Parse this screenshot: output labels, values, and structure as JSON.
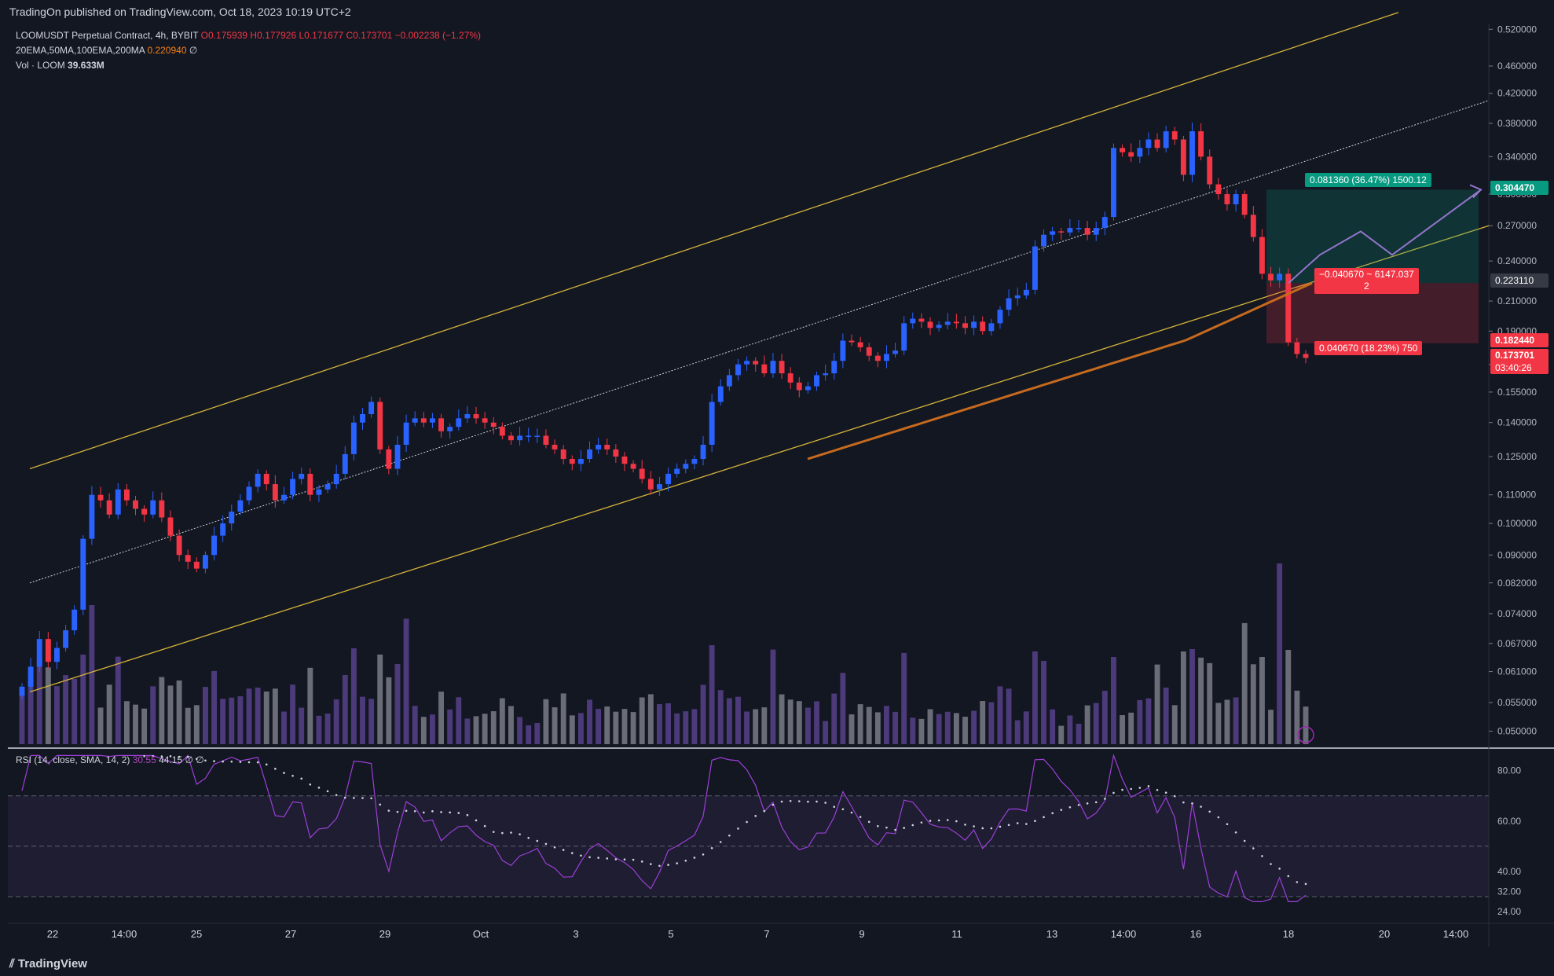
{
  "header": {
    "published": "TradingOn published on TradingView.com, Oct 18, 2023 10:19 UTC+2"
  },
  "footer": {
    "brand": "TradingView",
    "brand_icon": "tradingview-logo-icon"
  },
  "legend": {
    "symbol": "LOOMUSDT Perpetual Contract, 4h, BYBIT",
    "open": "O0.175939",
    "high": "H0.177926",
    "low": "L0.171677",
    "close": "C0.173701",
    "change": "−0.002238 (−1.27%)",
    "ema_label": "20EMA,50MA,100EMA,200MA",
    "ema_value": "0.220940",
    "ema_extra": "∅",
    "vol_label": "Vol · LOOM",
    "vol_value": "39.633M",
    "rsi_label": "RSI (14, close, SMA, 14, 2)",
    "rsi_value": "30.55",
    "rsi_ma": "44.15",
    "rsi_extra": "∅  ∅"
  },
  "price_tags": {
    "target": "0.304470",
    "ma200": "0.223110",
    "stop": "0.182440",
    "last": "0.173701",
    "countdown": "03:40:26"
  },
  "position": {
    "profit_label": "0.081360 (36.47%) 1500.12",
    "entry_label_1": "−0.040670 ~ 6147.037",
    "entry_label_2": "2",
    "loss_label": "0.040670 (18.23%) 750"
  },
  "colors": {
    "bull": "#2962ff",
    "bear": "#f23645",
    "channel": "#d4b43a",
    "ma": "#c66a1e",
    "rsi": "#9c3fd6",
    "profit": "#089981",
    "loss": "#f23645"
  },
  "chart_data": {
    "type": "candlestick",
    "symbol": "LOOMUSDT",
    "interval": "4h",
    "y_axis": {
      "scale": "log",
      "ticks": [
        0.52,
        0.46,
        0.42,
        0.38,
        0.34,
        0.3,
        0.27,
        0.24,
        0.21,
        0.19,
        0.17,
        0.155,
        0.14,
        0.125,
        0.11,
        0.1,
        0.09,
        0.082,
        0.074,
        0.067,
        0.061,
        0.055,
        0.05
      ],
      "tick_labels": [
        "0.520000",
        "0.460000",
        "0.420000",
        "0.380000",
        "0.340000",
        "0.300000",
        "0.270000",
        "0.240000",
        "0.210000",
        "0.190000",
        "0.170000",
        "0.155000",
        "0.140000",
        "0.125000",
        "0.110000",
        "0.100000",
        "0.090000",
        "0.082000",
        "0.074000",
        "0.067000",
        "0.061000",
        "0.055000",
        "0.050000"
      ]
    },
    "x_axis": {
      "labels": [
        "22",
        "14:00",
        "25",
        "27",
        "29",
        "Oct",
        "3",
        "5",
        "7",
        "9",
        "11",
        "13",
        "14:00",
        "16",
        "18",
        "20",
        "14:00"
      ]
    },
    "rsi_axis": {
      "ticks": [
        80,
        60,
        40,
        32,
        24
      ],
      "tick_labels": [
        "80.00",
        "60.00",
        "40.00",
        "32.00",
        "24.00"
      ],
      "bands": [
        70,
        50,
        30
      ]
    },
    "closes": [
      0.058,
      0.062,
      0.068,
      0.063,
      0.066,
      0.07,
      0.075,
      0.095,
      0.11,
      0.108,
      0.103,
      0.112,
      0.108,
      0.105,
      0.103,
      0.108,
      0.102,
      0.096,
      0.09,
      0.088,
      0.086,
      0.09,
      0.096,
      0.1,
      0.104,
      0.108,
      0.113,
      0.118,
      0.114,
      0.108,
      0.11,
      0.116,
      0.118,
      0.11,
      0.112,
      0.114,
      0.118,
      0.126,
      0.14,
      0.144,
      0.15,
      0.128,
      0.12,
      0.13,
      0.14,
      0.142,
      0.14,
      0.142,
      0.136,
      0.138,
      0.142,
      0.144,
      0.142,
      0.14,
      0.138,
      0.134,
      0.132,
      0.134,
      0.134,
      0.134,
      0.13,
      0.128,
      0.124,
      0.122,
      0.124,
      0.128,
      0.13,
      0.128,
      0.125,
      0.122,
      0.12,
      0.116,
      0.112,
      0.114,
      0.118,
      0.12,
      0.122,
      0.124,
      0.13,
      0.15,
      0.158,
      0.164,
      0.17,
      0.172,
      0.17,
      0.165,
      0.172,
      0.165,
      0.16,
      0.156,
      0.158,
      0.164,
      0.165,
      0.172,
      0.184,
      0.183,
      0.18,
      0.175,
      0.172,
      0.176,
      0.178,
      0.195,
      0.198,
      0.196,
      0.192,
      0.194,
      0.196,
      0.195,
      0.192,
      0.196,
      0.19,
      0.195,
      0.204,
      0.212,
      0.214,
      0.218,
      0.252,
      0.262,
      0.265,
      0.264,
      0.268,
      0.268,
      0.262,
      0.268,
      0.278,
      0.35,
      0.345,
      0.34,
      0.35,
      0.36,
      0.35,
      0.37,
      0.36,
      0.32,
      0.37,
      0.34,
      0.31,
      0.3,
      0.29,
      0.3,
      0.28,
      0.26,
      0.23,
      0.225,
      0.23,
      0.183,
      0.176,
      0.1737
    ],
    "ma200": {
      "name": "200MA",
      "from_index": 92,
      "start": 0.124,
      "end": 0.223
    },
    "channel": {
      "upper_start": 0.12,
      "upper_end": 0.55,
      "lower_start": 0.057,
      "lower_end": 0.27,
      "mid_start": 0.082,
      "mid_end": 0.41
    },
    "position": {
      "type": "long",
      "entry": 0.223,
      "target": 0.3045,
      "stop": 0.1824
    },
    "projection": [
      0.223,
      0.245,
      0.265,
      0.245,
      0.3045
    ],
    "volume_spikes": [
      8,
      44,
      86,
      140,
      160,
      172,
      182
    ]
  }
}
